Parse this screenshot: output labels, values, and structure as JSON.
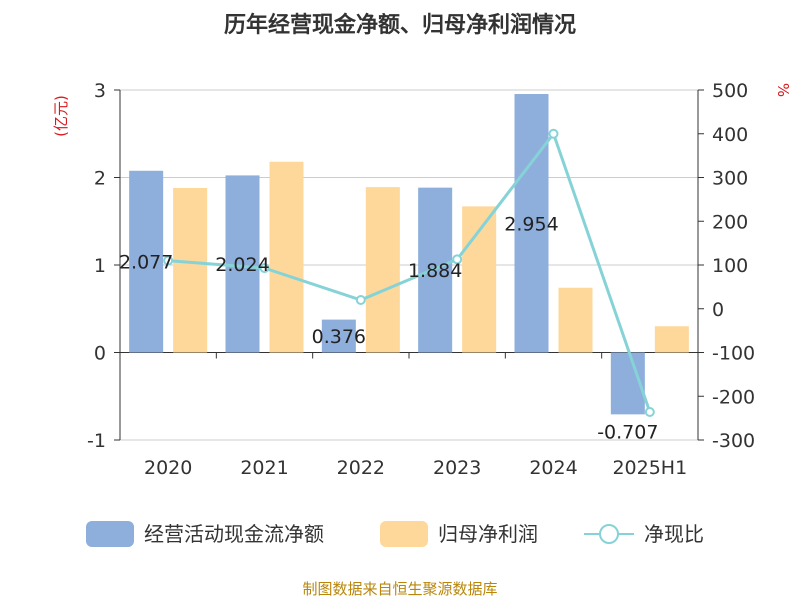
{
  "chart_data": {
    "type": "bar",
    "title": "历年经营现金净额、归母净利润情况",
    "categories": [
      "2020",
      "2021",
      "2022",
      "2023",
      "2024",
      "2025H1"
    ],
    "series": [
      {
        "name": "经营活动现金流净额",
        "type": "bar",
        "axis": "left",
        "color": "#8eaedc",
        "values": [
          2.077,
          2.024,
          0.376,
          1.884,
          2.954,
          -0.707
        ]
      },
      {
        "name": "归母净利润",
        "type": "bar",
        "axis": "left",
        "color": "#fdd89a",
        "values": [
          1.88,
          2.18,
          1.89,
          1.67,
          0.74,
          0.3
        ]
      },
      {
        "name": "净现比",
        "type": "line",
        "axis": "right",
        "color": "#86d3d7",
        "values": [
          110,
          93,
          20,
          113,
          400,
          -236
        ]
      }
    ],
    "data_labels": [
      "2.077",
      "2.024",
      "0.376",
      "1.884",
      "2.954",
      "-0.707"
    ],
    "y_left": {
      "unit": "(亿元)",
      "ylim": [
        -1,
        3
      ],
      "ticks": [
        "-1",
        "0",
        "1",
        "2",
        "3"
      ]
    },
    "y_right": {
      "unit": "%",
      "ylim": [
        -300,
        500
      ],
      "ticks": [
        "-300",
        "-200",
        "-100",
        "0",
        "100",
        "200",
        "300",
        "400",
        "500"
      ]
    },
    "grid": true,
    "legend_position": "bottom"
  },
  "footer": {
    "source": "制图数据来自恒生聚源数据库"
  }
}
